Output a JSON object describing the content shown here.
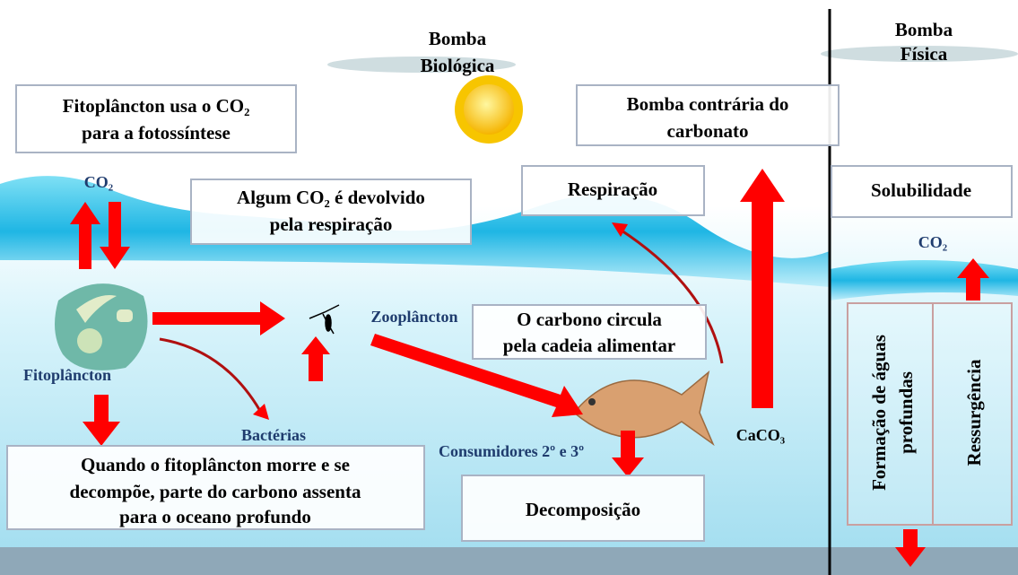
{
  "pumps": [
    {
      "lines": [
        "Bomba",
        "Biológica"
      ]
    },
    {
      "lines": [
        "Bomba",
        "Física"
      ]
    }
  ],
  "boxes": [
    {
      "lines": [
        "Fitoplâncton usa o CO₂",
        "para a fotossíntese"
      ]
    },
    {
      "lines": [
        "Algum CO₂ é devolvido",
        "pela respiração"
      ]
    },
    {
      "lines": [
        "Bomba contrária do",
        "carbonato"
      ]
    },
    {
      "lines": [
        "Respiração"
      ]
    },
    {
      "lines": [
        "Solubilidade"
      ]
    },
    {
      "lines": [
        "O carbono circula",
        "pela cadeia alimentar"
      ]
    },
    {
      "lines": [
        "Quando o fitoplâncton morre e se",
        "decompõe, parte do carbono assenta",
        "para o oceano profundo"
      ]
    },
    {
      "lines": [
        "Decomposição"
      ]
    },
    {
      "lines": [
        "Formação de águas",
        "profundas"
      ]
    },
    {
      "lines": [
        "Ressurgência"
      ]
    }
  ],
  "labels": [
    "CO₂",
    "Fitoplâncton",
    "Zooplâncton",
    "Bactérias",
    "Consumidores 2º e 3º",
    "CaCO₃",
    "CO₂"
  ]
}
